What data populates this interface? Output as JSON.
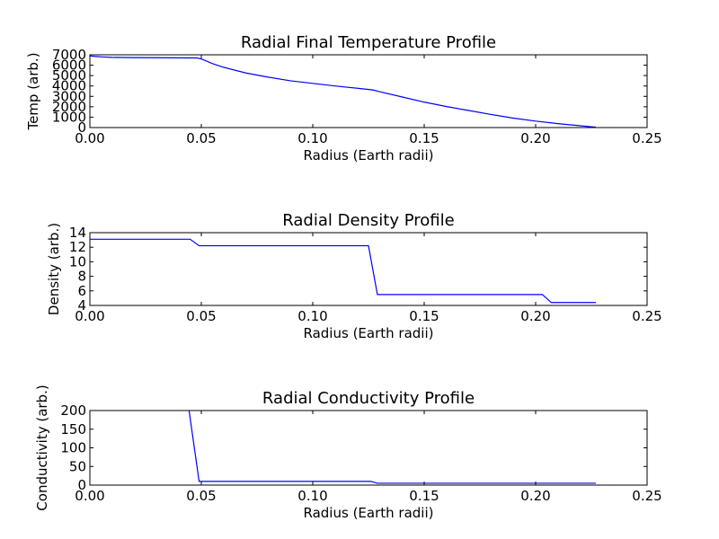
{
  "chart_data": [
    {
      "type": "line",
      "title": "Radial Final Temperature Profile",
      "xlabel": "Radius (Earth radii)",
      "ylabel": "Temp (arb.)",
      "xlim": [
        0,
        0.25
      ],
      "ylim": [
        0,
        7000
      ],
      "xticks": [
        "0.00",
        "0.05",
        "0.10",
        "0.15",
        "0.20",
        "0.25"
      ],
      "yticks": [
        "0",
        "1000",
        "2000",
        "3000",
        "4000",
        "5000",
        "6000",
        "7000"
      ],
      "x": [
        0.0,
        0.002,
        0.005,
        0.01,
        0.02,
        0.03,
        0.04,
        0.048,
        0.05,
        0.055,
        0.06,
        0.07,
        0.08,
        0.09,
        0.1,
        0.11,
        0.12,
        0.127,
        0.13,
        0.14,
        0.15,
        0.16,
        0.17,
        0.18,
        0.19,
        0.2,
        0.21,
        0.22,
        0.227
      ],
      "y": [
        6900,
        6850,
        6800,
        6750,
        6730,
        6720,
        6710,
        6700,
        6600,
        6150,
        5800,
        5250,
        4850,
        4500,
        4250,
        4000,
        3780,
        3620,
        3450,
        2950,
        2450,
        2020,
        1640,
        1260,
        910,
        620,
        380,
        170,
        30
      ]
    },
    {
      "type": "line",
      "title": "Radial Density Profile",
      "xlabel": "Radius (Earth radii)",
      "ylabel": "Density (arb.)",
      "xlim": [
        0,
        0.25
      ],
      "ylim": [
        4,
        14
      ],
      "xticks": [
        "0.00",
        "0.05",
        "0.10",
        "0.15",
        "0.20",
        "0.25"
      ],
      "yticks": [
        "4",
        "6",
        "8",
        "10",
        "12",
        "14"
      ],
      "x": [
        0.0,
        0.045,
        0.049,
        0.125,
        0.129,
        0.203,
        0.207,
        0.227
      ],
      "y": [
        13.1,
        13.1,
        12.2,
        12.2,
        5.5,
        5.5,
        4.4,
        4.4
      ]
    },
    {
      "type": "line",
      "title": "Radial Conductivity Profile",
      "xlabel": "Radius (Earth radii)",
      "ylabel": "Conductivity (arb.)",
      "xlim": [
        0,
        0.25
      ],
      "ylim": [
        0,
        200
      ],
      "xticks": [
        "0.00",
        "0.05",
        "0.10",
        "0.15",
        "0.20",
        "0.25"
      ],
      "yticks": [
        "0",
        "50",
        "100",
        "150",
        "200"
      ],
      "x": [
        0.0445,
        0.049,
        0.126,
        0.129,
        0.227
      ],
      "y": [
        200,
        10,
        10,
        5,
        5
      ]
    }
  ]
}
